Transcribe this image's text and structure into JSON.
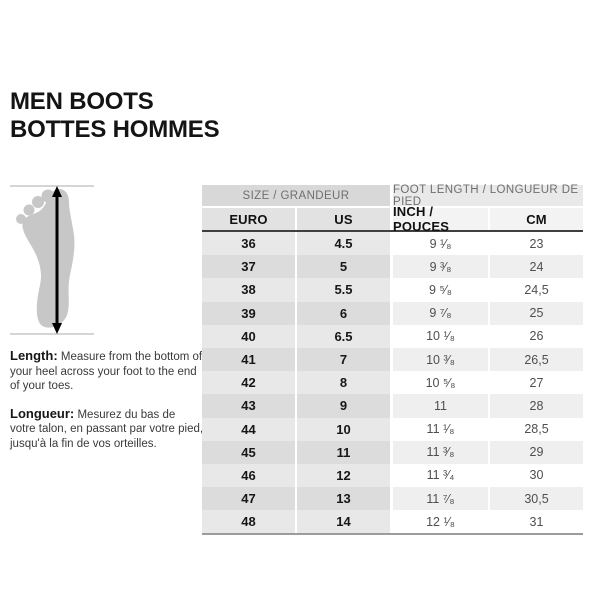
{
  "header": {
    "title_en": "MEN BOOTS",
    "title_fr": "BOTTES HOMMES"
  },
  "figure": {
    "description": "foot-silhouette-with-length-arrow"
  },
  "instructions": {
    "length_label": "Length:",
    "length_text": "Measure from the bottom of your heel across your foot to the end of your toes.",
    "longueur_label": "Longueur:",
    "longueur_text": "Mesurez du bas de votre talon, en passant par votre pied, jusqu'à la fin de vos orteilles."
  },
  "table": {
    "group_size": "SIZE / GRANDEUR",
    "group_foot_length": "FOOT LENGTH / LONGUEUR DE PIED",
    "columns": [
      "EURO",
      "US",
      "INCH / POUCES",
      "CM"
    ],
    "rows": [
      [
        "36",
        "4.5",
        "9 ¹⁄₈",
        "23"
      ],
      [
        "37",
        "5",
        "9 ³⁄₈",
        "24"
      ],
      [
        "38",
        "5.5",
        "9 ⁵⁄₈",
        "24,5"
      ],
      [
        "39",
        "6",
        "9 ⁷⁄₈",
        "25"
      ],
      [
        "40",
        "6.5",
        "10 ¹⁄₈",
        "26"
      ],
      [
        "41",
        "7",
        "10 ³⁄₈",
        "26,5"
      ],
      [
        "42",
        "8",
        "10 ⁵⁄₈",
        "27"
      ],
      [
        "43",
        "9",
        "11",
        "28"
      ],
      [
        "44",
        "10",
        "11 ¹⁄₈",
        "28,5"
      ],
      [
        "45",
        "11",
        "11 ³⁄₈",
        "29"
      ],
      [
        "46",
        "12",
        "11 ³⁄₄",
        "30"
      ],
      [
        "47",
        "13",
        "11 ⁷⁄₈",
        "30,5"
      ],
      [
        "48",
        "14",
        "12 ¹⁄₈",
        "31"
      ]
    ]
  },
  "colors": {
    "group_header_left_bg": "#d8d8d8",
    "group_header_right_bg": "#e9e9e9",
    "column_header_left_bg": "#e2e2e2",
    "column_header_right_bg": "#f3f3f3",
    "row_left_bg": "#e8e8e8",
    "row_left_alt_bg": "#dcdcdc",
    "row_right_bg": "#ffffff",
    "row_right_alt_bg": "#efefef",
    "header_divider": "#3f3f3f",
    "table_bottom_border": "#9c9c9c",
    "foot_fill": "#c7c7c7",
    "guide_line": "#ababab",
    "arrow": "#000000",
    "text_dark": "#141414",
    "text_gray": "#6f6f6f"
  }
}
